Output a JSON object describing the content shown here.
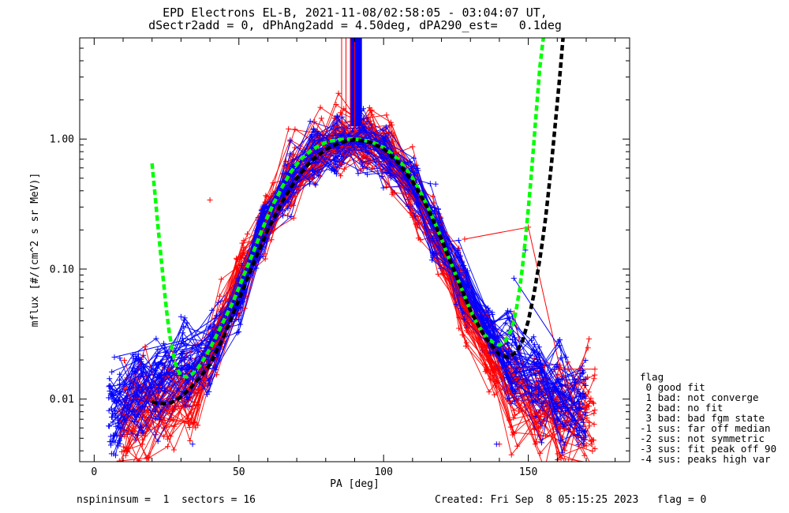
{
  "title": {
    "line1": "EPD Electrons EL-B, 2021-11-08/02:58:05 - 03:04:07 UT,",
    "line2": "dSectr2add = 0, dPhAng2add = 4.50deg, dPA290_est=   0.1deg"
  },
  "flags": {
    "header": "flag",
    "items": [
      " 0 good fit",
      " 1 bad: not converge",
      " 2 bad: no fit",
      " 3 bad: bad fgm state",
      "-1 sus: far off median",
      "-2 sus: not symmetric",
      "-3 sus: fit peak off 90",
      "-4 sus: peaks high var"
    ]
  },
  "footer": {
    "left": "nspininsum =  1  sectors = 16",
    "right": "Created: Fri Sep  8 05:15:25 2023   flag = 0"
  },
  "chart_data": {
    "type": "line",
    "xlabel": "PA [deg]",
    "ylabel": "mflux [#/(cm^2 s sr MeV)]",
    "xlim": [
      -5,
      185
    ],
    "ylim": [
      0.0033,
      6.0
    ],
    "yscale": "log",
    "grid": false,
    "xticks": [
      0,
      50,
      100,
      150
    ],
    "xtick_labels": [
      "0",
      "50",
      "100",
      "150"
    ],
    "yticks": [
      0.01,
      0.1,
      1.0
    ],
    "ytick_labels": [
      "0.01",
      "0.10",
      "1.00"
    ],
    "colors": {
      "red": "#ff0000",
      "blue": "#0000ff",
      "green": "#00ff00",
      "black": "#000000"
    },
    "series": [
      {
        "kind": "trace-bundle",
        "color": "#ff0000",
        "x": [
          10,
          17,
          26,
          34,
          43,
          51,
          60,
          68,
          77,
          85,
          94,
          102,
          111,
          119,
          128,
          137,
          145,
          154,
          162,
          171
        ],
        "y": [
          0.0068,
          0.0072,
          0.0085,
          0.011,
          0.03,
          0.095,
          0.26,
          0.5,
          0.8,
          0.97,
          0.98,
          0.72,
          0.4,
          0.16,
          0.055,
          0.02,
          0.013,
          0.0085,
          0.0072,
          0.0068
        ],
        "count": 40,
        "spread": 0.28
      },
      {
        "kind": "trace-bundle",
        "color": "#0000ff",
        "x": [
          7,
          15,
          23,
          32,
          41,
          50,
          58,
          67,
          76,
          84,
          93,
          101,
          110,
          118,
          127,
          136,
          144,
          153,
          161,
          168
        ],
        "y": [
          0.0085,
          0.0105,
          0.013,
          0.017,
          0.026,
          0.06,
          0.2,
          0.45,
          0.78,
          0.95,
          0.97,
          0.8,
          0.45,
          0.2,
          0.08,
          0.034,
          0.019,
          0.013,
          0.011,
          0.0095
        ],
        "count": 55,
        "spread": 0.22
      },
      {
        "kind": "fit",
        "name": "green dashed",
        "color": "#00ff00",
        "x": [
          20,
          21,
          22,
          23,
          24,
          25,
          26,
          27,
          28,
          29,
          30,
          32,
          34,
          36,
          38,
          40,
          42,
          45,
          48,
          50,
          52,
          55,
          58,
          60,
          62,
          65,
          68,
          70,
          72,
          75,
          78,
          80,
          82,
          85,
          88,
          90,
          92,
          95,
          98,
          100,
          102,
          105,
          108,
          110,
          112,
          115,
          118,
          120,
          122,
          125,
          128,
          130,
          132,
          135,
          138,
          140,
          142,
          144,
          145,
          146,
          147,
          148,
          149,
          150,
          151,
          152,
          153,
          154,
          155,
          156
        ],
        "y": [
          0.65,
          0.38,
          0.22,
          0.13,
          0.078,
          0.048,
          0.032,
          0.024,
          0.019,
          0.0166,
          0.0151,
          0.0148,
          0.0157,
          0.0175,
          0.0205,
          0.0245,
          0.03,
          0.041,
          0.056,
          0.072,
          0.093,
          0.135,
          0.2,
          0.255,
          0.32,
          0.43,
          0.56,
          0.64,
          0.72,
          0.82,
          0.9,
          0.94,
          0.97,
          0.99,
          1.0,
          1.0,
          0.99,
          0.96,
          0.91,
          0.86,
          0.8,
          0.7,
          0.58,
          0.5,
          0.42,
          0.31,
          0.22,
          0.17,
          0.13,
          0.09,
          0.062,
          0.048,
          0.039,
          0.031,
          0.027,
          0.026,
          0.028,
          0.034,
          0.04,
          0.051,
          0.07,
          0.105,
          0.17,
          0.29,
          0.52,
          0.98,
          1.9,
          3.6,
          5.5,
          8.0
        ]
      },
      {
        "kind": "fit",
        "name": "black dashed",
        "color": "#000000",
        "x": [
          20,
          22,
          24,
          26,
          28,
          30,
          33,
          36,
          40,
          45,
          50,
          55,
          60,
          65,
          70,
          75,
          80,
          85,
          90,
          95,
          100,
          105,
          110,
          115,
          120,
          125,
          130,
          135,
          140,
          143,
          146,
          148,
          150,
          152,
          154,
          155,
          156,
          157,
          158,
          159,
          160,
          161,
          162
        ],
        "y": [
          0.0095,
          0.0093,
          0.0092,
          0.0093,
          0.0097,
          0.0104,
          0.012,
          0.0142,
          0.0185,
          0.031,
          0.058,
          0.11,
          0.2,
          0.33,
          0.5,
          0.68,
          0.83,
          0.94,
          0.99,
          0.95,
          0.84,
          0.66,
          0.47,
          0.3,
          0.17,
          0.09,
          0.048,
          0.03,
          0.022,
          0.021,
          0.023,
          0.028,
          0.04,
          0.065,
          0.12,
          0.17,
          0.25,
          0.4,
          0.65,
          1.1,
          1.9,
          3.3,
          6.0
        ]
      },
      {
        "kind": "spike",
        "color": "#0000ff",
        "x_range": [
          88.5,
          92.5
        ],
        "y_base": 1.25
      },
      {
        "kind": "spike",
        "color": "#ff0000",
        "x_range": [
          85.5,
          90.0
        ],
        "y_base": 1.1
      },
      {
        "kind": "outliers",
        "color": "#ff0000",
        "points": [
          [
            150,
            0.21
          ],
          [
            128,
            0.17
          ],
          [
            161,
            0.017
          ],
          [
            173,
            0.017
          ],
          [
            137,
            0.019
          ],
          [
            40,
            0.34
          ],
          [
            168,
            0.008
          ],
          [
            140,
            0.0045
          ]
        ]
      },
      {
        "kind": "outliers",
        "color": "#0000ff",
        "points": [
          [
            7,
            0.021
          ],
          [
            30,
            0.043
          ],
          [
            118,
            0.45
          ],
          [
            149,
            0.14
          ],
          [
            163,
            0.021
          ],
          [
            145,
            0.085
          ],
          [
            6,
            0.0038
          ],
          [
            139,
            0.0045
          ],
          [
            34,
            0.0045
          ]
        ]
      }
    ]
  }
}
